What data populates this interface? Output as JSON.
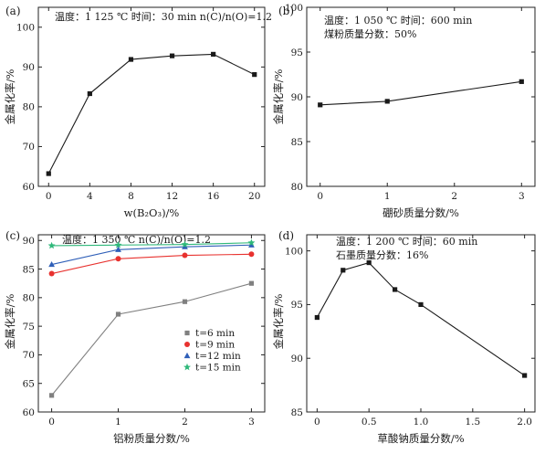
{
  "chart_data": [
    {
      "type": "line",
      "panel_label": "(a)",
      "annotation_lines": [
        "温度：1 125 ℃  时间：30 min n(C)/n(O)=1.2"
      ],
      "xlabel": "w(B₂O₃)/%",
      "ylabel": "金属化率/%",
      "xlim": [
        -1,
        21
      ],
      "ylim": [
        60,
        105
      ],
      "xticks": [
        0,
        4,
        8,
        12,
        16,
        20
      ],
      "yticks": [
        60,
        70,
        80,
        90,
        100
      ],
      "x": [
        0,
        4,
        8,
        12,
        16,
        20
      ],
      "series": [
        {
          "name": "",
          "values": [
            63.2,
            83.3,
            91.9,
            92.8,
            93.2,
            88.1
          ],
          "color": "#1a1a1a",
          "marker": "square"
        }
      ]
    },
    {
      "type": "line",
      "panel_label": "(b)",
      "annotation_lines": [
        "温度：1 050 ℃  时间：600 min",
        "煤粉质量分数：50%"
      ],
      "xlabel": "硼砂质量分数/%",
      "ylabel": "金属化率/%",
      "xlim": [
        -0.2,
        3.2
      ],
      "ylim": [
        80,
        100
      ],
      "xticks": [
        0,
        1,
        2,
        3
      ],
      "yticks": [
        80,
        85,
        90,
        95,
        100
      ],
      "x": [
        0,
        1,
        3
      ],
      "series": [
        {
          "name": "",
          "values": [
            89.1,
            89.5,
            91.7
          ],
          "color": "#1a1a1a",
          "marker": "square"
        }
      ]
    },
    {
      "type": "line",
      "panel_label": "(c)",
      "annotation_lines": [
        "温度：1 350 ℃  n(C)/n(O)=1.2"
      ],
      "xlabel": "铝粉质量分数/%",
      "ylabel": "金属化率/%",
      "xlim": [
        -0.2,
        3.2
      ],
      "ylim": [
        60,
        91
      ],
      "xticks": [
        0,
        1,
        2,
        3
      ],
      "yticks": [
        60,
        65,
        70,
        75,
        80,
        85,
        90
      ],
      "x": [
        0,
        1,
        2,
        3
      ],
      "series": [
        {
          "name": "t=6 min",
          "values": [
            62.9,
            77.1,
            79.3,
            82.5
          ],
          "color": "#808080",
          "marker": "square"
        },
        {
          "name": "t=9 min",
          "values": [
            84.2,
            86.8,
            87.4,
            87.6
          ],
          "color": "#e8322f",
          "marker": "circle"
        },
        {
          "name": "t=12 min",
          "values": [
            85.8,
            88.4,
            88.9,
            89.2
          ],
          "color": "#2f5fb8",
          "marker": "triangle"
        },
        {
          "name": "t=15 min",
          "values": [
            89.1,
            89.2,
            89.3,
            89.6
          ],
          "color": "#2fb87a",
          "marker": "star"
        }
      ]
    },
    {
      "type": "line",
      "panel_label": "(d)",
      "annotation_lines": [
        "温度：1 200 ℃  时间：60 min",
        "石墨质量分数：16%"
      ],
      "xlabel": "草酸钠质量分数/%",
      "ylabel": "金属化率/%",
      "xlim": [
        -0.1,
        2.1
      ],
      "ylim": [
        85,
        101.5
      ],
      "xticks": [
        0,
        0.5,
        1.0,
        1.5,
        2.0
      ],
      "xtick_labels": [
        "0",
        "0.5",
        "1.0",
        "1.5",
        "2.0"
      ],
      "yticks": [
        85,
        90,
        95,
        100
      ],
      "x": [
        0,
        0.25,
        0.5,
        0.75,
        1.0,
        2.0
      ],
      "series": [
        {
          "name": "",
          "values": [
            93.8,
            98.2,
            98.9,
            96.4,
            95.0,
            88.4
          ],
          "color": "#1a1a1a",
          "marker": "square"
        }
      ]
    }
  ]
}
